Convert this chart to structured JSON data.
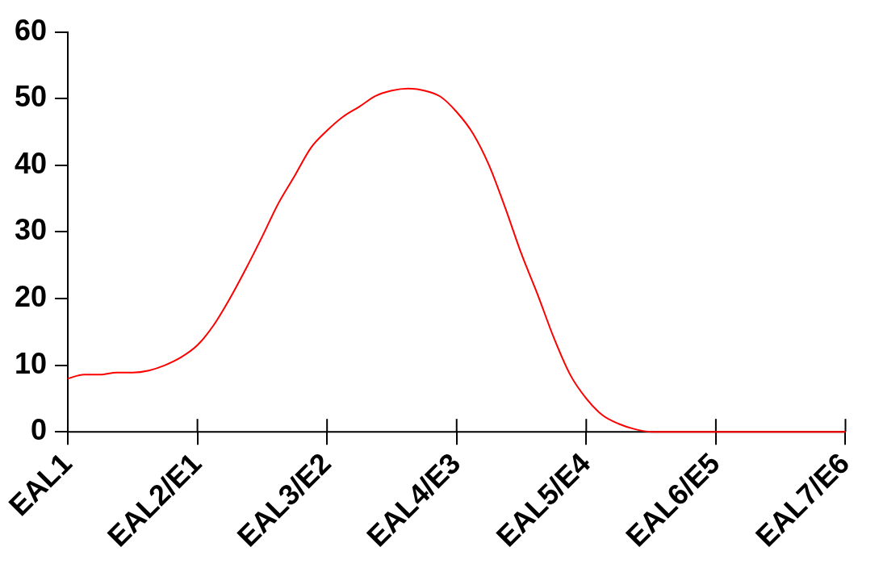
{
  "chart_data": {
    "type": "line",
    "categories": [
      "EAL1",
      null,
      null,
      null,
      null,
      null,
      null,
      null,
      "EAL2/E1",
      null,
      null,
      null,
      null,
      null,
      null,
      null,
      "EAL3/E2",
      null,
      null,
      null,
      null,
      null,
      null,
      null,
      "EAL4/E3",
      null,
      null,
      null,
      null,
      null,
      null,
      null,
      "EAL5/E4",
      null,
      null,
      null,
      null,
      null,
      null,
      null,
      "EAL6/E5",
      null,
      null,
      null,
      null,
      null,
      null,
      null,
      "EAL7/E6"
    ],
    "ylim": [
      0,
      60
    ],
    "yticks": [
      0,
      10,
      20,
      30,
      40,
      50,
      60
    ],
    "grid": false,
    "legend": false,
    "marker": "none",
    "line_style": "solid",
    "series": [
      {
        "color": "#ff0000",
        "values": [
          8.0,
          8.6,
          8.6,
          8.9,
          8.9,
          9.2,
          10.0,
          11.2,
          13.0,
          16,
          20,
          24.5,
          29.3,
          34.3,
          38.4,
          42.6,
          45.2,
          47.3,
          48.8,
          50.4,
          51.2,
          51.5,
          51.2,
          50.3,
          48,
          44.8,
          40,
          33.6,
          26.7,
          20.6,
          14.1,
          8.6,
          5,
          2.5,
          1.2,
          0.4,
          0,
          0,
          0,
          0,
          0,
          0,
          0,
          0,
          0,
          0,
          0,
          0,
          0
        ]
      }
    ]
  }
}
